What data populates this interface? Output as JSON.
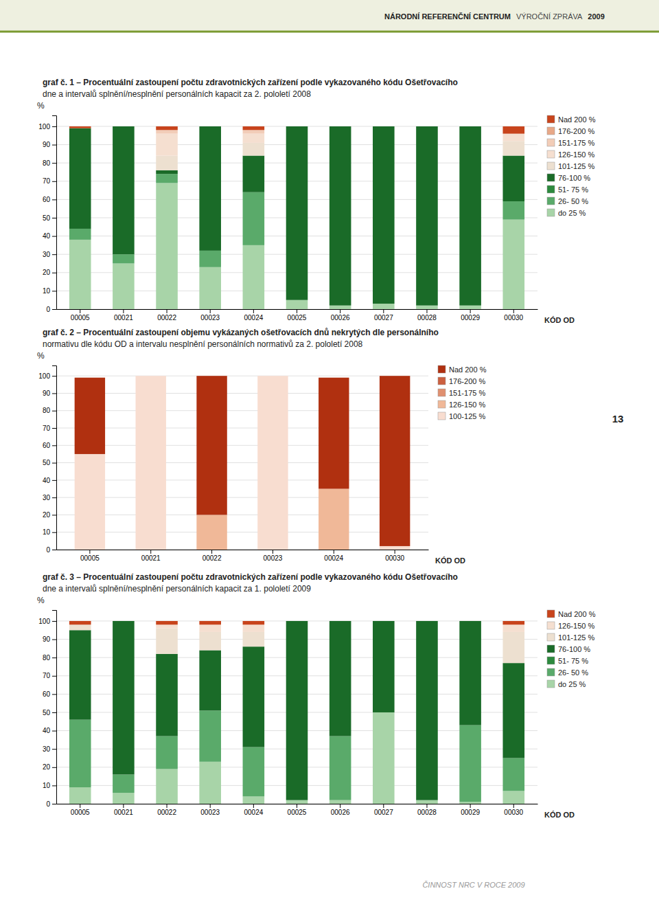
{
  "annotations": [
    "NÁRODNÍ REFERENČNÍ CENTRUM",
    "VÝROČNÍ ZPRÁVA",
    "2009",
    "13",
    "ČINNOST NRC V ROCE 2009"
  ],
  "chart_data": [
    {
      "type": "bar",
      "stacked": true,
      "grid": true,
      "legend": "right",
      "title": "graf č. 1 – Procentuální zastoupení počtu zdravotnických zařízení podle vykazovaného kódu Ošetřovacího",
      "subtitle": "dne a intervalů splnění/nesplnění personálních kapacit za 2. pololetí 2008",
      "x_label": "KÓD OD",
      "y_label": "%",
      "categories": [
        "00005",
        "00021",
        "00022",
        "00023",
        "00024",
        "00025",
        "00026",
        "00027",
        "00028",
        "00029",
        "00030"
      ],
      "ylim": [
        0,
        106
      ],
      "yticks": [
        0,
        10,
        20,
        30,
        40,
        50,
        60,
        70,
        80,
        90,
        100
      ],
      "series": [
        {
          "name": "Nad 200 %",
          "color": "#c8441c",
          "values": [
            1,
            0,
            2,
            0,
            2,
            0,
            0,
            0,
            0,
            0,
            4
          ]
        },
        {
          "name": "176-200 %",
          "color": "#e8a888",
          "values": [
            0,
            0,
            0,
            0,
            0,
            0,
            0,
            0,
            0,
            0,
            0
          ]
        },
        {
          "name": "151-175 %",
          "color": "#f2cdb8",
          "values": [
            0,
            0,
            2,
            0,
            2,
            0,
            0,
            0,
            0,
            0,
            0
          ]
        },
        {
          "name": "126-150 %",
          "color": "#f5dfd0",
          "values": [
            0,
            0,
            12,
            0,
            5,
            0,
            0,
            0,
            0,
            0,
            4
          ]
        },
        {
          "name": "101-125 %",
          "color": "#ede0d0",
          "values": [
            0,
            0,
            8,
            0,
            7,
            0,
            0,
            0,
            0,
            0,
            8
          ]
        },
        {
          "name": "76-100 %",
          "color": "#1a6b28",
          "values": [
            55,
            70,
            2,
            68,
            20,
            95,
            98,
            97,
            98,
            98,
            25
          ]
        },
        {
          "name": "51- 75 %",
          "color": "#2d8a3e",
          "values": [
            0,
            0,
            0,
            0,
            0,
            0,
            0,
            0,
            0,
            0,
            0
          ]
        },
        {
          "name": "26- 50 %",
          "color": "#5aaa6a",
          "values": [
            6,
            5,
            5,
            9,
            29,
            0,
            0,
            0,
            0,
            0,
            10
          ]
        },
        {
          "name": "do 25 %",
          "color": "#a8d4a8",
          "values": [
            38,
            25,
            69,
            23,
            35,
            5,
            2,
            3,
            2,
            2,
            49
          ]
        }
      ]
    },
    {
      "type": "bar",
      "stacked": true,
      "grid": true,
      "legend": "right",
      "title": "graf č. 2 – Procentuální zastoupení objemu vykázaných ošetřovacích dnů nekrytých dle personálního",
      "subtitle": "normativu dle kódu OD a intervalu nesplnění personálních normativů za 2. pololetí 2008",
      "x_label": "KÓD OD",
      "y_label": "%",
      "categories": [
        "00005",
        "00021",
        "00022",
        "00023",
        "00024",
        "00030"
      ],
      "ylim": [
        0,
        106
      ],
      "yticks": [
        0,
        10,
        20,
        30,
        40,
        50,
        60,
        70,
        80,
        90,
        100
      ],
      "series": [
        {
          "name": "Nad 200 %",
          "color": "#b03010",
          "values": [
            44,
            0,
            80,
            0,
            64,
            98
          ]
        },
        {
          "name": "176-200 %",
          "color": "#cc6040",
          "values": [
            0,
            0,
            0,
            0,
            0,
            0
          ]
        },
        {
          "name": "151-175 %",
          "color": "#e09070",
          "values": [
            0,
            0,
            0,
            0,
            0,
            0
          ]
        },
        {
          "name": "126-150 %",
          "color": "#f0b898",
          "values": [
            0,
            0,
            20,
            0,
            35,
            0
          ]
        },
        {
          "name": "100-125 %",
          "color": "#f8ddd0",
          "values": [
            55,
            100,
            0,
            100,
            0,
            2
          ]
        }
      ]
    },
    {
      "type": "bar",
      "stacked": true,
      "grid": true,
      "legend": "right",
      "title": "graf č. 3 – Procentuální zastoupení počtu zdravotnických zařízení podle vykazovaného kódu Ošetřovacího",
      "subtitle": "dne a intervalů splnění/nesplnění personálních kapacit za 1. pololetí 2009",
      "x_label": "KÓD OD",
      "y_label": "%",
      "categories": [
        "00005",
        "00021",
        "00022",
        "00023",
        "00024",
        "00025",
        "00026",
        "00027",
        "00028",
        "00029",
        "00030"
      ],
      "ylim": [
        0,
        106
      ],
      "yticks": [
        0,
        10,
        20,
        30,
        40,
        50,
        60,
        70,
        80,
        90,
        100
      ],
      "series": [
        {
          "name": "Nad 200 %",
          "color": "#c8441c",
          "values": [
            2,
            0,
            2,
            2,
            2,
            0,
            0,
            0,
            0,
            0,
            2
          ]
        },
        {
          "name": "126-150 %",
          "color": "#f5dfd0",
          "values": [
            0,
            0,
            2,
            4,
            4,
            0,
            0,
            0,
            0,
            0,
            4
          ]
        },
        {
          "name": "101-125 %",
          "color": "#ede0d0",
          "values": [
            3,
            0,
            14,
            10,
            8,
            0,
            0,
            0,
            0,
            0,
            17
          ]
        },
        {
          "name": "76-100 %",
          "color": "#1a6b28",
          "values": [
            49,
            84,
            45,
            33,
            55,
            98,
            63,
            50,
            98,
            57,
            52
          ]
        },
        {
          "name": "51- 75 %",
          "color": "#2d8a3e",
          "values": [
            0,
            0,
            0,
            0,
            0,
            0,
            0,
            0,
            0,
            0,
            0
          ]
        },
        {
          "name": "26- 50 %",
          "color": "#5aaa6a",
          "values": [
            37,
            10,
            18,
            28,
            27,
            0,
            35,
            0,
            0,
            42,
            18
          ]
        },
        {
          "name": "do 25 %",
          "color": "#a8d4a8",
          "values": [
            9,
            6,
            19,
            23,
            4,
            2,
            2,
            50,
            2,
            1,
            7
          ]
        }
      ]
    }
  ]
}
